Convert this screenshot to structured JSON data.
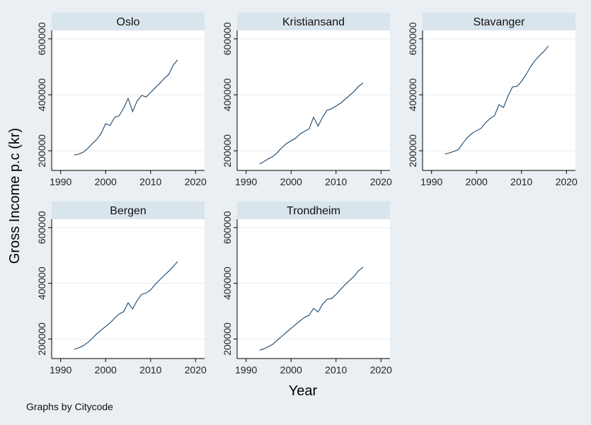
{
  "chart_data": {
    "type": "line",
    "xlabel": "Year",
    "ylabel": "Gross Income p.c (kr)",
    "xlim": [
      1988,
      2022
    ],
    "ylim": [
      130000,
      630000
    ],
    "x_ticks": [
      1990,
      2000,
      2010,
      2020
    ],
    "y_ticks": [
      200000,
      400000,
      600000
    ],
    "grid": true,
    "x": [
      1993,
      1994,
      1995,
      1996,
      1997,
      1998,
      1999,
      2000,
      2001,
      2002,
      2003,
      2004,
      2005,
      2006,
      2007,
      2008,
      2009,
      2010,
      2011,
      2012,
      2013,
      2014,
      2015,
      2016
    ],
    "panels": [
      {
        "name": "Oslo",
        "values": [
          185000,
          188000,
          195000,
          208000,
          225000,
          240000,
          262000,
          297000,
          290000,
          320000,
          325000,
          352000,
          387000,
          340000,
          378000,
          398000,
          392000,
          408000,
          425000,
          440000,
          458000,
          472000,
          505000,
          525000
        ]
      },
      {
        "name": "Kristiansand",
        "values": [
          153000,
          162000,
          172000,
          180000,
          195000,
          212000,
          226000,
          236000,
          245000,
          260000,
          270000,
          278000,
          320000,
          288000,
          320000,
          345000,
          350000,
          360000,
          370000,
          384000,
          398000,
          412000,
          430000,
          442000
        ]
      },
      {
        "name": "Stavanger",
        "values": [
          188000,
          193000,
          198000,
          205000,
          228000,
          248000,
          262000,
          272000,
          280000,
          300000,
          315000,
          325000,
          365000,
          355000,
          395000,
          428000,
          430000,
          448000,
          472000,
          500000,
          522000,
          540000,
          555000,
          575000
        ]
      },
      {
        "name": "Bergen",
        "values": [
          163000,
          168000,
          176000,
          187000,
          202000,
          218000,
          232000,
          245000,
          258000,
          275000,
          290000,
          298000,
          330000,
          308000,
          338000,
          360000,
          365000,
          376000,
          396000,
          412000,
          428000,
          443000,
          460000,
          478000
        ]
      },
      {
        "name": "Trondheim",
        "values": [
          160000,
          165000,
          173000,
          182000,
          197000,
          210000,
          225000,
          238000,
          252000,
          265000,
          278000,
          285000,
          310000,
          297000,
          325000,
          343000,
          345000,
          360000,
          378000,
          395000,
          410000,
          425000,
          445000,
          458000
        ]
      }
    ]
  },
  "footnote": "Graphs by Citycode",
  "colors": {
    "background": "#e9eff2",
    "plot_bg": "#ffffff",
    "strip": "#d9e5ec",
    "line": "#1a476f",
    "grid": "#e6ecef"
  }
}
